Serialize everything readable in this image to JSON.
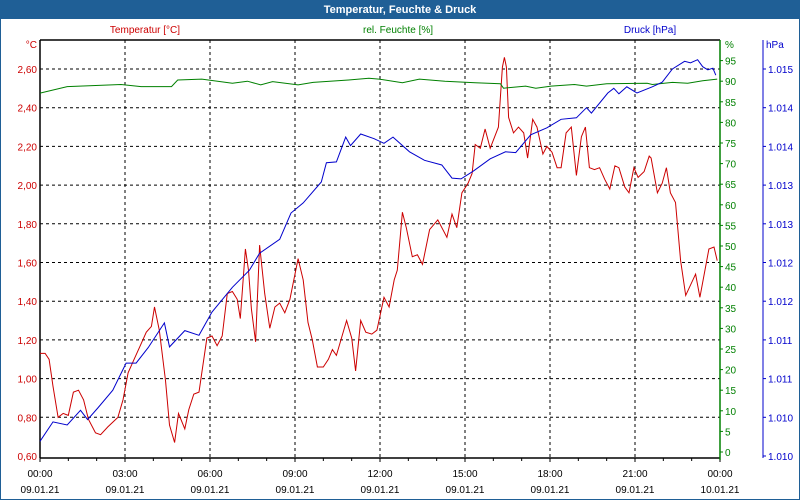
{
  "window": {
    "title": "Temperatur, Feuchte & Druck"
  },
  "chart_data": {
    "type": "line",
    "title": "Temperatur, Feuchte & Druck",
    "grid": true,
    "xlabel": "",
    "x_range_hours": [
      0,
      24
    ],
    "x_ticks": [
      {
        "time": "00:00",
        "date": "09.01.21"
      },
      {
        "time": "03:00",
        "date": "09.01.21"
      },
      {
        "time": "06:00",
        "date": "09.01.21"
      },
      {
        "time": "09:00",
        "date": "09.01.21"
      },
      {
        "time": "12:00",
        "date": "09.01.21"
      },
      {
        "time": "15:00",
        "date": "09.01.21"
      },
      {
        "time": "18:00",
        "date": "09.01.21"
      },
      {
        "time": "21:00",
        "date": "09.01.21"
      },
      {
        "time": "00:00",
        "date": "10.01.21"
      }
    ],
    "axes": {
      "temperature": {
        "legend": "Temperatur [°C]",
        "unit": "°C",
        "color": "#cc0000",
        "range": [
          0.6,
          2.6
        ],
        "ticks": [
          "0,60",
          "0,80",
          "1,00",
          "1,20",
          "1,40",
          "1,60",
          "1,80",
          "2,00",
          "2,20",
          "2,40",
          "2,60"
        ]
      },
      "humidity": {
        "legend": "rel. Feuchte [%]",
        "unit": "%",
        "color": "#008000",
        "range": [
          0,
          95
        ],
        "ticks": [
          "0",
          "5",
          "10",
          "15",
          "20",
          "25",
          "30",
          "35",
          "40",
          "45",
          "50",
          "55",
          "60",
          "65",
          "70",
          "75",
          "80",
          "85",
          "90",
          "95"
        ]
      },
      "pressure": {
        "legend": "Druck [hPa]",
        "unit": "hPa",
        "color": "#0000cc",
        "range": [
          1.0098,
          1.0148
        ],
        "ticks": [
          "1.010",
          "1.010",
          "1.011",
          "1.011",
          "1.012",
          "1.012",
          "1.013",
          "1.013",
          "1.014",
          "1.014",
          "1.015"
        ]
      }
    },
    "series": [
      {
        "name": "Temperatur",
        "axis": "temperature",
        "color": "#cc0000",
        "points": [
          [
            0,
            1.13
          ],
          [
            0.18,
            1.13
          ],
          [
            0.32,
            1.1
          ],
          [
            0.46,
            0.96
          ],
          [
            0.64,
            0.8
          ],
          [
            0.82,
            0.82
          ],
          [
            1.0,
            0.81
          ],
          [
            1.18,
            0.93
          ],
          [
            1.36,
            0.94
          ],
          [
            1.54,
            0.89
          ],
          [
            1.71,
            0.79
          ],
          [
            1.96,
            0.72
          ],
          [
            2.14,
            0.71
          ],
          [
            2.39,
            0.75
          ],
          [
            2.75,
            0.8
          ],
          [
            2.93,
            0.89
          ],
          [
            3.11,
            1.03
          ],
          [
            3.32,
            1.1
          ],
          [
            3.57,
            1.18
          ],
          [
            3.75,
            1.24
          ],
          [
            3.93,
            1.27
          ],
          [
            4.04,
            1.37
          ],
          [
            4.21,
            1.25
          ],
          [
            4.43,
            0.99
          ],
          [
            4.57,
            0.76
          ],
          [
            4.75,
            0.67
          ],
          [
            4.89,
            0.82
          ],
          [
            5.11,
            0.74
          ],
          [
            5.25,
            0.84
          ],
          [
            5.43,
            0.92
          ],
          [
            5.61,
            0.93
          ],
          [
            5.71,
            1.03
          ],
          [
            5.89,
            1.21
          ],
          [
            6.07,
            1.22
          ],
          [
            6.25,
            1.17
          ],
          [
            6.43,
            1.22
          ],
          [
            6.61,
            1.44
          ],
          [
            6.79,
            1.45
          ],
          [
            6.96,
            1.41
          ],
          [
            7.07,
            1.31
          ],
          [
            7.25,
            1.67
          ],
          [
            7.36,
            1.56
          ],
          [
            7.46,
            1.36
          ],
          [
            7.61,
            1.19
          ],
          [
            7.75,
            1.69
          ],
          [
            7.93,
            1.44
          ],
          [
            8.11,
            1.26
          ],
          [
            8.29,
            1.37
          ],
          [
            8.46,
            1.39
          ],
          [
            8.64,
            1.34
          ],
          [
            8.82,
            1.41
          ],
          [
            9.11,
            1.62
          ],
          [
            9.29,
            1.51
          ],
          [
            9.46,
            1.29
          ],
          [
            9.61,
            1.2
          ],
          [
            9.79,
            1.06
          ],
          [
            10.0,
            1.06
          ],
          [
            10.18,
            1.1
          ],
          [
            10.32,
            1.15
          ],
          [
            10.46,
            1.12
          ],
          [
            10.82,
            1.3
          ],
          [
            11.0,
            1.21
          ],
          [
            11.14,
            1.04
          ],
          [
            11.32,
            1.3
          ],
          [
            11.5,
            1.24
          ],
          [
            11.71,
            1.23
          ],
          [
            11.89,
            1.25
          ],
          [
            12.14,
            1.42
          ],
          [
            12.32,
            1.37
          ],
          [
            12.5,
            1.51
          ],
          [
            12.61,
            1.56
          ],
          [
            12.79,
            1.86
          ],
          [
            12.93,
            1.78
          ],
          [
            13.14,
            1.63
          ],
          [
            13.32,
            1.64
          ],
          [
            13.5,
            1.59
          ],
          [
            13.75,
            1.77
          ],
          [
            14.04,
            1.82
          ],
          [
            14.36,
            1.73
          ],
          [
            14.54,
            1.85
          ],
          [
            14.71,
            1.78
          ],
          [
            14.89,
            1.96
          ],
          [
            15.11,
            2.01
          ],
          [
            15.25,
            2.06
          ],
          [
            15.36,
            2.21
          ],
          [
            15.54,
            2.19
          ],
          [
            15.71,
            2.29
          ],
          [
            15.89,
            2.19
          ],
          [
            16.18,
            2.3
          ],
          [
            16.32,
            2.61
          ],
          [
            16.39,
            2.66
          ],
          [
            16.46,
            2.61
          ],
          [
            16.54,
            2.35
          ],
          [
            16.71,
            2.27
          ],
          [
            16.89,
            2.3
          ],
          [
            17.07,
            2.27
          ],
          [
            17.21,
            2.14
          ],
          [
            17.39,
            2.34
          ],
          [
            17.54,
            2.3
          ],
          [
            17.75,
            2.16
          ],
          [
            17.89,
            2.2
          ],
          [
            18.07,
            2.17
          ],
          [
            18.25,
            2.09
          ],
          [
            18.39,
            2.09
          ],
          [
            18.57,
            2.27
          ],
          [
            18.75,
            2.3
          ],
          [
            18.93,
            2.05
          ],
          [
            19.11,
            2.25
          ],
          [
            19.25,
            2.3
          ],
          [
            19.39,
            2.09
          ],
          [
            19.57,
            2.08
          ],
          [
            19.75,
            2.09
          ],
          [
            19.93,
            2.03
          ],
          [
            20.11,
            1.98
          ],
          [
            20.29,
            2.1
          ],
          [
            20.43,
            2.09
          ],
          [
            20.64,
            1.99
          ],
          [
            20.79,
            1.96
          ],
          [
            20.96,
            2.09
          ],
          [
            21.11,
            2.04
          ],
          [
            21.32,
            2.07
          ],
          [
            21.5,
            2.15
          ],
          [
            21.57,
            2.14
          ],
          [
            21.79,
            1.96
          ],
          [
            21.96,
            2.01
          ],
          [
            22.11,
            2.09
          ],
          [
            22.25,
            1.96
          ],
          [
            22.43,
            1.91
          ],
          [
            22.61,
            1.61
          ],
          [
            22.79,
            1.43
          ],
          [
            23.14,
            1.54
          ],
          [
            23.29,
            1.42
          ],
          [
            23.61,
            1.67
          ],
          [
            23.79,
            1.68
          ],
          [
            23.9,
            1.61
          ]
        ]
      },
      {
        "name": "rel. Feuchte",
        "axis": "humidity",
        "color": "#008000",
        "points": [
          [
            0,
            87.1
          ],
          [
            0.96,
            88.7
          ],
          [
            2.86,
            89.2
          ],
          [
            3.57,
            88.7
          ],
          [
            4.64,
            88.7
          ],
          [
            4.86,
            90.3
          ],
          [
            5.71,
            90.5
          ],
          [
            6.79,
            89.5
          ],
          [
            7.32,
            90.0
          ],
          [
            7.79,
            89.1
          ],
          [
            8.21,
            89.9
          ],
          [
            9.11,
            89.1
          ],
          [
            9.64,
            89.7
          ],
          [
            10.89,
            90.3
          ],
          [
            11.61,
            90.7
          ],
          [
            11.96,
            90.5
          ],
          [
            12.79,
            89.6
          ],
          [
            13.39,
            90.5
          ],
          [
            14.29,
            90.0
          ],
          [
            15.36,
            89.6
          ],
          [
            16.25,
            89.4
          ],
          [
            16.36,
            88.3
          ],
          [
            17.14,
            88.8
          ],
          [
            17.5,
            88.3
          ],
          [
            18.04,
            88.8
          ],
          [
            18.86,
            89.2
          ],
          [
            19.29,
            88.8
          ],
          [
            20.0,
            89.4
          ],
          [
            21.43,
            89.5
          ],
          [
            21.61,
            89.2
          ],
          [
            22.32,
            89.7
          ],
          [
            22.86,
            89.5
          ],
          [
            23.39,
            90.1
          ],
          [
            23.9,
            90.5
          ]
        ]
      },
      {
        "name": "Druck",
        "axis": "pressure",
        "color": "#0000cc",
        "points": [
          [
            0,
            1.00999
          ],
          [
            0.46,
            1.01024
          ],
          [
            0.96,
            1.0102
          ],
          [
            1.43,
            1.01039
          ],
          [
            1.68,
            1.01027
          ],
          [
            2.04,
            1.01042
          ],
          [
            2.57,
            1.01065
          ],
          [
            3.04,
            1.011
          ],
          [
            3.39,
            1.011
          ],
          [
            3.82,
            1.0112
          ],
          [
            4.39,
            1.01152
          ],
          [
            4.57,
            1.01121
          ],
          [
            5.11,
            1.01142
          ],
          [
            5.61,
            1.01136
          ],
          [
            6.07,
            1.01166
          ],
          [
            6.79,
            1.01198
          ],
          [
            7.39,
            1.0122
          ],
          [
            7.75,
            1.01242
          ],
          [
            8.46,
            1.0126
          ],
          [
            8.86,
            1.01294
          ],
          [
            9.29,
            1.01307
          ],
          [
            9.93,
            1.01334
          ],
          [
            10.11,
            1.01359
          ],
          [
            10.46,
            1.0136
          ],
          [
            10.79,
            1.01392
          ],
          [
            10.96,
            1.01381
          ],
          [
            11.32,
            1.01396
          ],
          [
            11.79,
            1.0139
          ],
          [
            12.14,
            1.01384
          ],
          [
            12.46,
            1.01392
          ],
          [
            13.04,
            1.01373
          ],
          [
            13.57,
            1.01362
          ],
          [
            14.18,
            1.01356
          ],
          [
            14.54,
            1.01339
          ],
          [
            14.86,
            1.01338
          ],
          [
            15.29,
            1.01348
          ],
          [
            15.89,
            1.01364
          ],
          [
            16.43,
            1.01373
          ],
          [
            16.79,
            1.01372
          ],
          [
            17.32,
            1.01395
          ],
          [
            17.89,
            1.01404
          ],
          [
            18.39,
            1.01415
          ],
          [
            18.93,
            1.01417
          ],
          [
            19.29,
            1.0143
          ],
          [
            19.46,
            1.01423
          ],
          [
            20.04,
            1.01449
          ],
          [
            20.25,
            1.01455
          ],
          [
            20.43,
            1.01448
          ],
          [
            20.71,
            1.01457
          ],
          [
            21.07,
            1.01449
          ],
          [
            21.61,
            1.01457
          ],
          [
            21.96,
            1.01463
          ],
          [
            22.32,
            1.0148
          ],
          [
            22.75,
            1.0149
          ],
          [
            22.96,
            1.01488
          ],
          [
            23.21,
            1.01492
          ],
          [
            23.39,
            1.01483
          ],
          [
            23.57,
            1.01479
          ],
          [
            23.75,
            1.01481
          ],
          [
            23.85,
            1.01472
          ]
        ]
      }
    ]
  }
}
